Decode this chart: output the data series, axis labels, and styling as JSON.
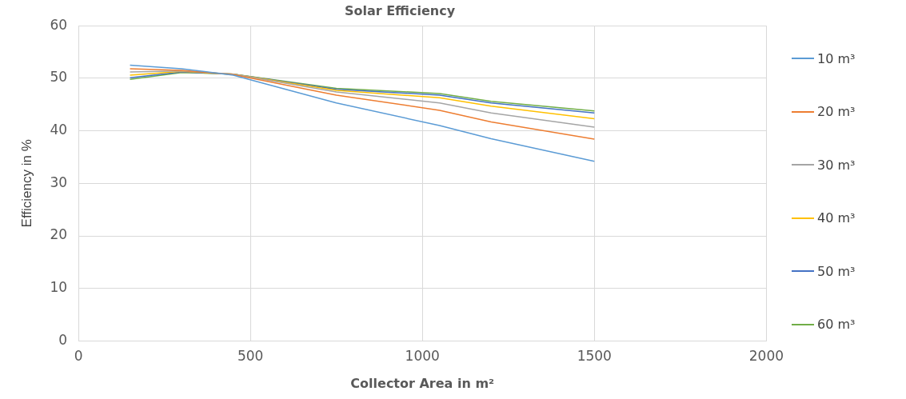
{
  "chart_data": {
    "type": "line",
    "title": "Solar Efficiency",
    "xlabel": "Collector Area in m²",
    "ylabel": "Efficiency in %",
    "x": [
      150,
      300,
      450,
      750,
      1050,
      1200,
      1500
    ],
    "series": [
      {
        "name": "10 m³",
        "color": "#5b9bd5",
        "values": [
          52.5,
          51.8,
          50.6,
          45.3,
          41.0,
          38.5,
          34.2
        ]
      },
      {
        "name": "20 m³",
        "color": "#ed7d31",
        "values": [
          51.8,
          51.5,
          50.7,
          46.8,
          43.9,
          41.7,
          38.4
        ]
      },
      {
        "name": "30 m³",
        "color": "#a5a5a5",
        "values": [
          51.2,
          51.4,
          50.8,
          47.4,
          45.3,
          43.4,
          40.7
        ]
      },
      {
        "name": "40 m³",
        "color": "#ffc000",
        "values": [
          50.6,
          51.3,
          50.8,
          47.7,
          46.3,
          44.7,
          42.3
        ]
      },
      {
        "name": "50 m³",
        "color": "#4472c4",
        "values": [
          50.1,
          51.2,
          50.8,
          47.9,
          46.8,
          45.3,
          43.4
        ]
      },
      {
        "name": "60 m³",
        "color": "#70ad47",
        "values": [
          49.8,
          51.1,
          50.8,
          48.1,
          47.1,
          45.6,
          43.8
        ]
      }
    ],
    "xlim": [
      0,
      2000
    ],
    "xticks": [
      0,
      500,
      1000,
      1500,
      2000
    ],
    "ylim": [
      0,
      60
    ],
    "yticks": [
      0,
      10,
      20,
      30,
      40,
      50,
      60
    ],
    "grid": true,
    "legend": "right",
    "marker": "none",
    "line_style": "solid"
  }
}
